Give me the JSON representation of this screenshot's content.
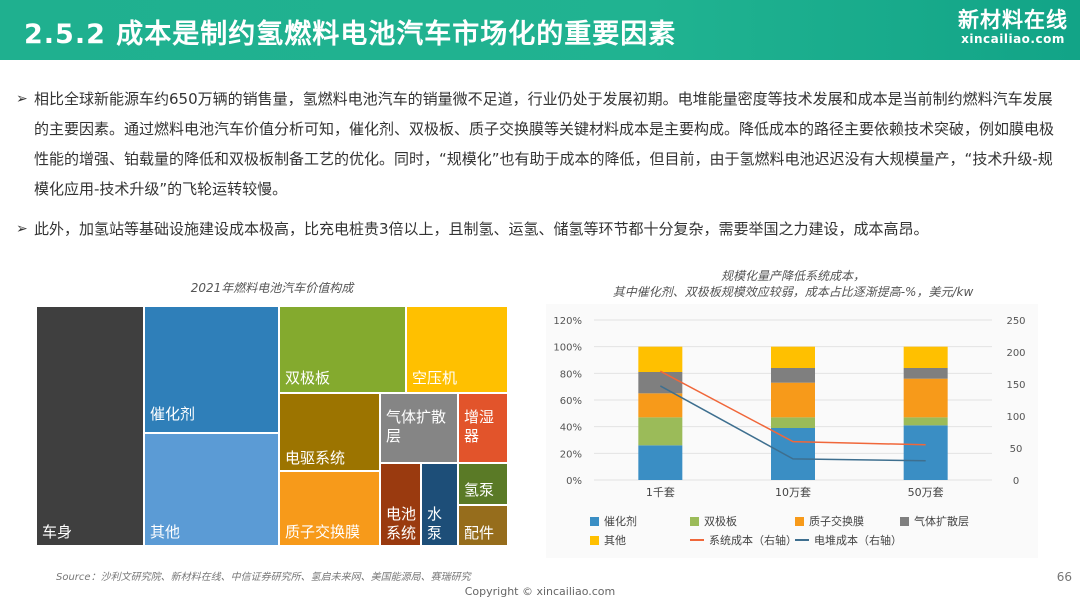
{
  "header": {
    "title": "2.5.2 成本是制约氢燃料电池汽车市场化的重要因素",
    "logo_main": "新材料在线",
    "logo_sub": "xincailiao.com"
  },
  "body": {
    "bullet_symbol": "➢",
    "paragraph1": "相比全球新能源车约650万辆的销售量，氢燃料电池汽车的销量微不足道，行业仍处于发展初期。电堆能量密度等技术发展和成本是当前制约燃料汽车发展的主要因素。通过燃料电池汽车价值分析可知，催化剂、双极板、质子交换膜等关键材料成本是主要构成。降低成本的路径主要依赖技术突破，例如膜电极性能的增强、铂载量的降低和双极板制备工艺的优化。同时，“规模化”也有助于成本的降低，但目前，由于氢燃料电池迟迟没有大规模量产，“技术升级-规模化应用-技术升级”的飞轮运转较慢。",
    "paragraph2": "此外，加氢站等基础设施建设成本极高，比充电桩贵3倍以上，且制氢、运氢、储氢等环节都十分复杂，需要举国之力建设，成本高昂。"
  },
  "treemap": {
    "title": "2021年燃料电池汽车价值构成",
    "cells": [
      {
        "label": "车身",
        "color": "#3f3f3f"
      },
      {
        "label": "催化剂",
        "color": "#2f7fb9"
      },
      {
        "label": "其他",
        "color": "#5b9bd5"
      },
      {
        "label": "双极板",
        "color": "#84aa2e"
      },
      {
        "label": "空压机",
        "color": "#ffc000"
      },
      {
        "label": "电驱系统",
        "color": "#9c7400"
      },
      {
        "label": "气体扩散层",
        "color": "#858585"
      },
      {
        "label": "增湿器",
        "color": "#e2542b"
      },
      {
        "label": "质子交换膜",
        "color": "#f79a1a"
      },
      {
        "label": "电池系统",
        "color": "#9a3a0f"
      },
      {
        "label": "水泵",
        "color": "#1d4e78"
      },
      {
        "label": "氢泵",
        "color": "#5a7a26"
      },
      {
        "label": "配件",
        "color": "#966d1c"
      }
    ]
  },
  "chart_data": {
    "type": "bar",
    "title": "规模化量产降低系统成本，",
    "subtitle": "其中催化剂、双极板规模效应较弱，成本占比逐渐提高-%，美元/kw",
    "categories": [
      "1千套",
      "10万套",
      "50万套"
    ],
    "stacked": true,
    "y_left_ticks": [
      "0%",
      "20%",
      "40%",
      "60%",
      "80%",
      "100%",
      "120%"
    ],
    "y_left_range": [
      0,
      120
    ],
    "y_right_ticks": [
      "0",
      "50",
      "100",
      "150",
      "200",
      "250"
    ],
    "y_right_range": [
      0,
      250
    ],
    "series": [
      {
        "name": "催化剂",
        "axis": "left",
        "color": "#3a8ec4",
        "values": [
          26,
          39,
          41
        ]
      },
      {
        "name": "双极板",
        "axis": "left",
        "color": "#9bbb59",
        "values": [
          21,
          8,
          6
        ]
      },
      {
        "name": "质子交换膜",
        "axis": "left",
        "color": "#f79a1a",
        "values": [
          18,
          26,
          29
        ]
      },
      {
        "name": "气体扩散层",
        "axis": "left",
        "color": "#7f7f7f",
        "values": [
          16,
          11,
          8
        ]
      },
      {
        "name": "其他",
        "axis": "left",
        "color": "#ffc000",
        "values": [
          19,
          16,
          16
        ]
      }
    ],
    "lines": [
      {
        "name": "系统成本（右轴）",
        "axis": "right",
        "color": "#f0673a",
        "values": [
          170,
          60,
          55
        ]
      },
      {
        "name": "电堆成本（右轴）",
        "axis": "right",
        "color": "#3e6f8f",
        "values": [
          147,
          33,
          30
        ]
      }
    ],
    "legend": [
      "催化剂",
      "双极板",
      "质子交换膜",
      "气体扩散层",
      "其他",
      "系统成本（右轴）",
      "电堆成本（右轴）"
    ],
    "grid": true,
    "legend_position": "bottom"
  },
  "footer": {
    "source": "Source：沙利文研究院、新材料在线、中信证券研究所、氢启未来网、美国能源局、赛瑞研究",
    "copyright": "Copyright © xincailiao.com",
    "page": "66"
  }
}
